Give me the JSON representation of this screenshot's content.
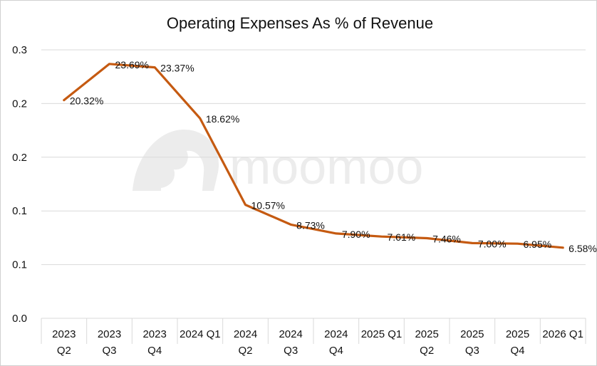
{
  "chart_data": {
    "type": "line",
    "title": "Operating Expenses As % of Revenue",
    "xlabel": "",
    "ylabel": "",
    "categories": [
      [
        "2023",
        "Q2"
      ],
      [
        "2023",
        "Q3"
      ],
      [
        "2023",
        "Q4"
      ],
      [
        "2024 Q1"
      ],
      [
        "2024",
        "Q2"
      ],
      [
        "2024",
        "Q3"
      ],
      [
        "2024",
        "Q4"
      ],
      [
        "2025 Q1"
      ],
      [
        "2025",
        "Q2"
      ],
      [
        "2025",
        "Q3"
      ],
      [
        "2025",
        "Q4"
      ],
      [
        "2026 Q1"
      ]
    ],
    "series": [
      {
        "name": "Operating Expenses As % of Revenue",
        "color": "#c55a11",
        "values": [
          0.2032,
          0.2369,
          0.2337,
          0.1862,
          0.1057,
          0.0873,
          0.079,
          0.0761,
          0.0746,
          0.07,
          0.0695,
          0.0658
        ],
        "labels": [
          "20.32%",
          "23.69%",
          "23.37%",
          "18.62%",
          "10.57%",
          "8.73%",
          "7.90%",
          "7.61%",
          "7.46%",
          "7.00%",
          "6.95%",
          "6.58%"
        ]
      }
    ],
    "ylim": [
      0,
      0.25
    ],
    "yticks": [
      0,
      0.05,
      0.1,
      0.15,
      0.2,
      0.25
    ],
    "ytick_labels": [
      "0.0",
      "0.1",
      "0.1",
      "0.2",
      "0.2",
      "0.3"
    ],
    "grid": true,
    "legend": "none"
  },
  "watermark": {
    "text": "moomoo"
  }
}
